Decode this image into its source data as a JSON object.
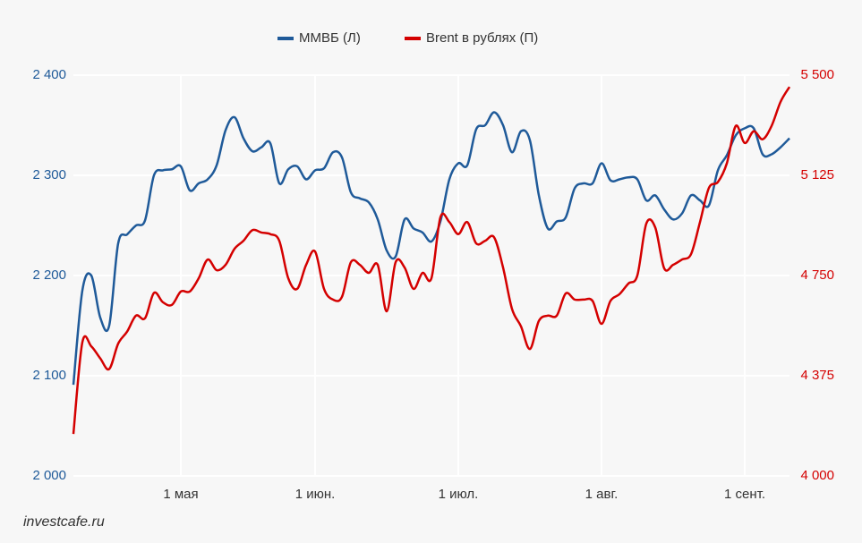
{
  "chart_data": {
    "type": "line",
    "watermark": "investcafe.ru",
    "categories": [
      null,
      null,
      null,
      null,
      null,
      null,
      null,
      null,
      null,
      null,
      null,
      null,
      "1 мая",
      null,
      null,
      null,
      null,
      null,
      null,
      null,
      null,
      null,
      null,
      null,
      null,
      null,
      null,
      "1 июн.",
      null,
      null,
      null,
      null,
      null,
      null,
      null,
      null,
      null,
      null,
      null,
      null,
      null,
      null,
      null,
      "1 июл.",
      null,
      null,
      null,
      null,
      null,
      null,
      null,
      null,
      null,
      null,
      null,
      null,
      null,
      null,
      null,
      "1 авг.",
      null,
      null,
      null,
      null,
      null,
      null,
      null,
      null,
      null,
      null,
      null,
      null,
      null,
      null,
      null,
      "1 сент.",
      null,
      null,
      null,
      null,
      null
    ],
    "series": [
      {
        "name": "ММВБ (Л)",
        "color": "#1f5a99",
        "axis": "y",
        "values": [
          2091,
          2185,
          2200,
          2158,
          2150,
          2232,
          2241,
          2250,
          2255,
          2300,
          2305,
          2306,
          2309,
          2285,
          2292,
          2296,
          2310,
          2345,
          2358,
          2337,
          2324,
          2328,
          2332,
          2292,
          2306,
          2309,
          2296,
          2305,
          2307,
          2323,
          2318,
          2283,
          2277,
          2273,
          2256,
          2225,
          2219,
          2256,
          2247,
          2243,
          2234,
          2254,
          2296,
          2312,
          2310,
          2346,
          2350,
          2363,
          2350,
          2323,
          2344,
          2335,
          2280,
          2247,
          2254,
          2258,
          2287,
          2292,
          2292,
          2312,
          2295,
          2296,
          2298,
          2296,
          2275,
          2280,
          2266,
          2256,
          2262,
          2280,
          2275,
          2270,
          2305,
          2320,
          2340,
          2347,
          2347,
          2321,
          2321,
          2328,
          2337
        ]
      },
      {
        "name": "Brent в рублях (П)",
        "color": "#d40000",
        "axis": "y2",
        "values": [
          4157,
          4500,
          4485,
          4440,
          4400,
          4495,
          4540,
          4600,
          4590,
          4685,
          4650,
          4640,
          4690,
          4690,
          4740,
          4810,
          4770,
          4790,
          4850,
          4880,
          4920,
          4911,
          4905,
          4880,
          4740,
          4700,
          4790,
          4840,
          4700,
          4660,
          4670,
          4800,
          4790,
          4760,
          4790,
          4616,
          4800,
          4780,
          4700,
          4760,
          4740,
          4968,
          4950,
          4905,
          4950,
          4870,
          4880,
          4893,
          4780,
          4625,
          4560,
          4475,
          4580,
          4600,
          4600,
          4683,
          4660,
          4660,
          4655,
          4569,
          4655,
          4680,
          4720,
          4750,
          4944,
          4930,
          4777,
          4790,
          4810,
          4830,
          4950,
          5078,
          5100,
          5170,
          5310,
          5246,
          5290,
          5260,
          5310,
          5400,
          5456
        ]
      }
    ],
    "ylim": [
      2000,
      2400
    ],
    "yticks": [
      {
        "value": 2000,
        "label": "2 000"
      },
      {
        "value": 2100,
        "label": "2 100"
      },
      {
        "value": 2200,
        "label": "2 200"
      },
      {
        "value": 2300,
        "label": "2 300"
      },
      {
        "value": 2400,
        "label": "2 400"
      }
    ],
    "y2lim": [
      4000,
      5500
    ],
    "y2ticks": [
      {
        "value": 4000,
        "label": "4 000"
      },
      {
        "value": 4375,
        "label": "4 375"
      },
      {
        "value": 4750,
        "label": "4 750"
      },
      {
        "value": 5125,
        "label": "5 125"
      },
      {
        "value": 5500,
        "label": "5 500"
      }
    ],
    "grid": true,
    "legend": "top"
  }
}
